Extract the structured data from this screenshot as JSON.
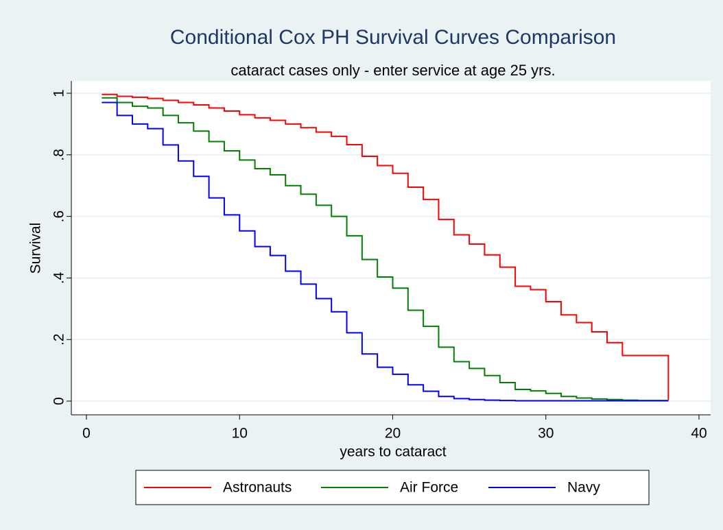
{
  "chart_data": {
    "type": "step",
    "title": "Conditional Cox PH Survival Curves Comparison",
    "subtitle": "cataract cases only - enter service at age 25 yrs.",
    "xlabel": "years to cataract",
    "ylabel": "Survival",
    "x": [
      1,
      2,
      3,
      4,
      5,
      6,
      7,
      8,
      9,
      10,
      11,
      12,
      13,
      14,
      15,
      16,
      17,
      18,
      19,
      20,
      21,
      22,
      23,
      24,
      25,
      26,
      27,
      28,
      29,
      30,
      31,
      32,
      33,
      34,
      35,
      36,
      37,
      38
    ],
    "series": [
      {
        "name": "Astronauts",
        "color": "#ff0000",
        "values": [
          0.996,
          0.99,
          0.987,
          0.983,
          0.977,
          0.97,
          0.962,
          0.952,
          0.942,
          0.93,
          0.92,
          0.912,
          0.9,
          0.888,
          0.874,
          0.86,
          0.833,
          0.795,
          0.765,
          0.74,
          0.695,
          0.655,
          0.59,
          0.54,
          0.51,
          0.475,
          0.435,
          0.373,
          0.362,
          0.323,
          0.28,
          0.255,
          0.225,
          0.19,
          0.148,
          0.148,
          0.148,
          0.003
        ]
      },
      {
        "name": "Air Force",
        "color": "#008000",
        "values": [
          0.985,
          0.97,
          0.958,
          0.952,
          0.928,
          0.904,
          0.877,
          0.843,
          0.813,
          0.783,
          0.755,
          0.735,
          0.7,
          0.672,
          0.636,
          0.6,
          0.537,
          0.46,
          0.403,
          0.367,
          0.295,
          0.243,
          0.175,
          0.128,
          0.106,
          0.083,
          0.06,
          0.038,
          0.033,
          0.025,
          0.015,
          0.01,
          0.007,
          0.005,
          0.003,
          0.002,
          0.002,
          0.002
        ]
      },
      {
        "name": "Navy",
        "color": "#0000ff",
        "values": [
          0.97,
          0.928,
          0.9,
          0.885,
          0.832,
          0.78,
          0.73,
          0.66,
          0.605,
          0.553,
          0.502,
          0.473,
          0.422,
          0.38,
          0.333,
          0.29,
          0.222,
          0.153,
          0.11,
          0.087,
          0.053,
          0.032,
          0.015,
          0.008,
          0.005,
          0.003,
          0.002,
          0.001,
          0.001,
          0.001,
          0.001,
          0.001,
          0.001,
          0.001,
          0.001,
          0.001,
          0.001,
          0.001
        ]
      }
    ],
    "xlim": [
      0,
      40
    ],
    "xticks": [
      0,
      10,
      20,
      30,
      40
    ],
    "ylim": [
      0,
      1
    ],
    "yticks": [
      0,
      {
        "value": 0.2,
        "label": ".2"
      },
      {
        "value": 0.4,
        "label": ".4"
      },
      {
        "value": 0.6,
        "label": ".6"
      },
      {
        "value": 0.8,
        "label": ".8"
      },
      1
    ],
    "grid": true,
    "legend": "bottom"
  }
}
